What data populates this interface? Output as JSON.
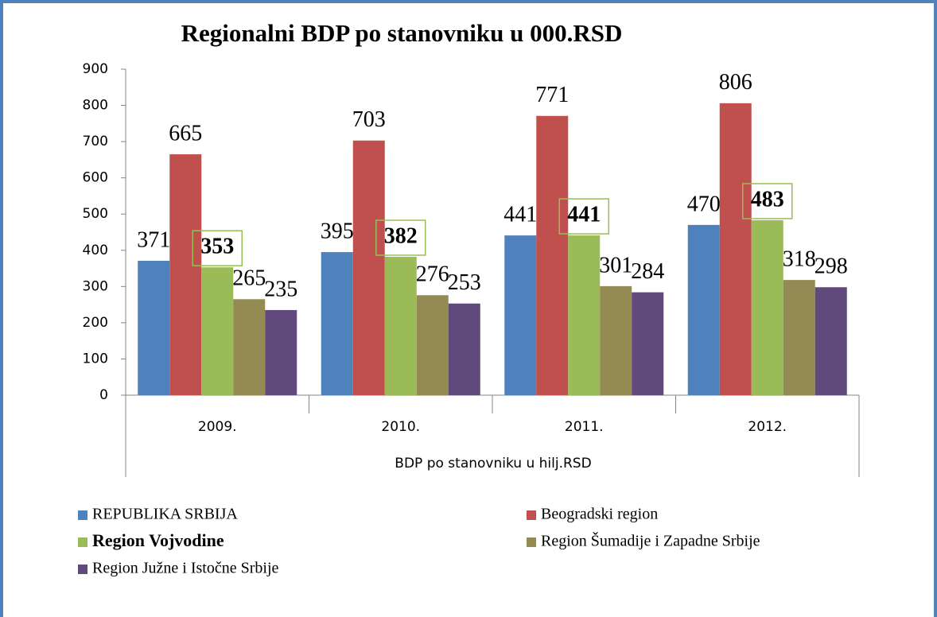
{
  "chart_data": {
    "type": "bar",
    "title": "Regionalni BDP po stanovniku u 000.RSD",
    "x_label": "BDP po stanovniku u hilj.RSD",
    "categories": [
      "2009.",
      "2010.",
      "2011.",
      "2012."
    ],
    "ylim": [
      0,
      900
    ],
    "yticks": [
      0,
      100,
      200,
      300,
      400,
      500,
      600,
      700,
      800,
      900
    ],
    "grid": false,
    "legend": "bottom",
    "series": [
      {
        "name": "REPUBLIKA SRBIJA",
        "color": "#4f81bd",
        "values": [
          371,
          395,
          441,
          470
        ]
      },
      {
        "name": "Beogradski region",
        "color": "#c0504d",
        "values": [
          665,
          703,
          771,
          806
        ]
      },
      {
        "name": "Region Vojvodine",
        "color": "#9bbb59",
        "values": [
          353,
          382,
          441,
          483
        ],
        "bold": true
      },
      {
        "name": "Region Šumadije i Zapadne Srbije",
        "color": "#948a54",
        "values": [
          265,
          276,
          301,
          318
        ]
      },
      {
        "name": "Region Južne i Istočne Srbije",
        "color": "#604a7b",
        "values": [
          235,
          253,
          284,
          298
        ]
      }
    ]
  }
}
